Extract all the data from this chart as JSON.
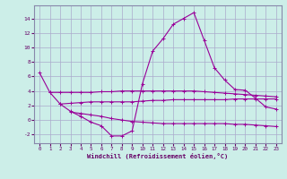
{
  "background_color": "#cceee8",
  "grid_color": "#aaaacc",
  "line_color": "#990099",
  "xlabel": "Windchill (Refroidissement éolien,°C)",
  "xlim": [
    -0.5,
    23.5
  ],
  "ylim": [
    -3.2,
    15.8
  ],
  "yticks": [
    -2,
    0,
    2,
    4,
    6,
    8,
    10,
    12,
    14
  ],
  "xticks": [
    0,
    1,
    2,
    3,
    4,
    5,
    6,
    7,
    8,
    9,
    10,
    11,
    12,
    13,
    14,
    15,
    16,
    17,
    18,
    19,
    20,
    21,
    22,
    23
  ],
  "series": {
    "main": {
      "x": [
        0,
        1,
        2,
        3,
        4,
        5,
        6,
        7,
        8,
        9,
        10,
        11,
        12,
        13,
        14,
        15,
        16,
        17,
        18,
        19,
        20,
        21,
        22,
        23
      ],
      "y": [
        6.5,
        3.8,
        2.2,
        1.2,
        0.5,
        -0.3,
        -0.8,
        -2.2,
        -2.2,
        -1.5,
        5.0,
        9.5,
        11.2,
        13.2,
        14.0,
        14.8,
        11.0,
        7.2,
        5.5,
        4.2,
        4.1,
        3.0,
        1.8,
        1.5
      ]
    },
    "upper": {
      "x": [
        1,
        2,
        3,
        4,
        5,
        6,
        7,
        8,
        9,
        10,
        11,
        12,
        13,
        14,
        15,
        16,
        17,
        18,
        19,
        20,
        21,
        22,
        23
      ],
      "y": [
        3.8,
        3.8,
        3.8,
        3.8,
        3.8,
        3.9,
        3.9,
        4.0,
        4.0,
        4.0,
        4.0,
        4.0,
        4.0,
        4.0,
        4.0,
        3.9,
        3.8,
        3.7,
        3.6,
        3.5,
        3.4,
        3.3,
        3.2
      ]
    },
    "mid": {
      "x": [
        2,
        3,
        4,
        5,
        6,
        7,
        8,
        9,
        10,
        11,
        12,
        13,
        14,
        15,
        16,
        17,
        18,
        19,
        20,
        21,
        22,
        23
      ],
      "y": [
        2.2,
        2.3,
        2.4,
        2.5,
        2.5,
        2.5,
        2.5,
        2.5,
        2.6,
        2.7,
        2.7,
        2.8,
        2.8,
        2.8,
        2.8,
        2.8,
        2.8,
        2.9,
        2.9,
        2.9,
        2.9,
        2.9
      ]
    },
    "lower": {
      "x": [
        3,
        4,
        5,
        6,
        7,
        8,
        9,
        10,
        11,
        12,
        13,
        14,
        15,
        16,
        17,
        18,
        19,
        20,
        21,
        22,
        23
      ],
      "y": [
        1.1,
        0.9,
        0.7,
        0.5,
        0.2,
        0.0,
        -0.2,
        -0.3,
        -0.4,
        -0.5,
        -0.5,
        -0.5,
        -0.5,
        -0.5,
        -0.5,
        -0.5,
        -0.6,
        -0.6,
        -0.7,
        -0.8,
        -0.9
      ]
    }
  }
}
